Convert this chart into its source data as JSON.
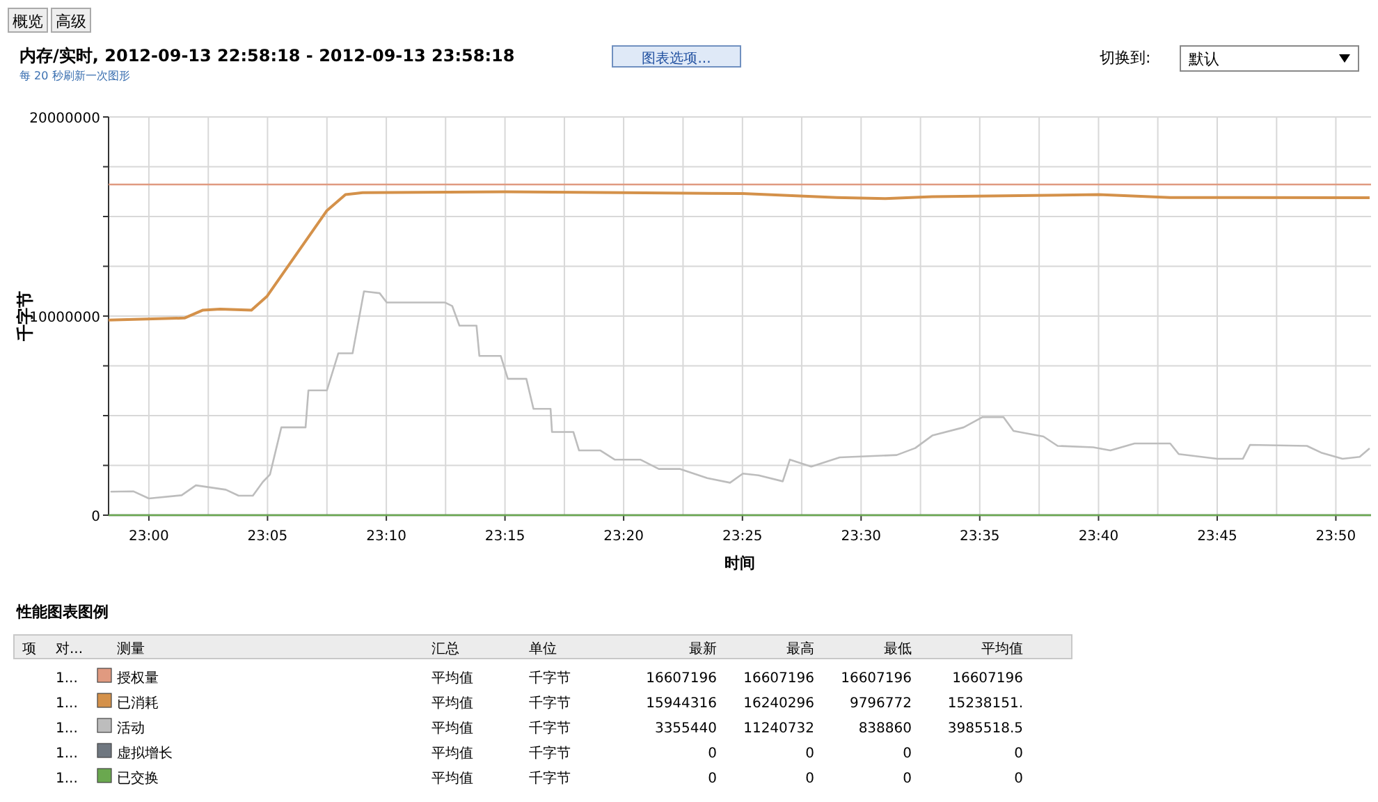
{
  "chart_data": {
    "type": "line",
    "title": "内存/实时, 2012-09-13 22:58:18 - 2012-09-13 23:58:18",
    "subtitle": "每 20 秒刷新一次图形",
    "xlabel": "时间",
    "ylabel": "千字节",
    "xlim": [
      22.9717,
      23.858
    ],
    "ylim": [
      0,
      20000000
    ],
    "xticks": [
      {
        "value": 23,
        "label": "23:00"
      },
      {
        "value": 23.0417,
        "label": null
      },
      {
        "value": 23.0833,
        "label": "23:05"
      },
      {
        "value": 23.125,
        "label": null
      },
      {
        "value": 23.1667,
        "label": "23:10"
      },
      {
        "value": 23.2083,
        "label": null
      },
      {
        "value": 23.25,
        "label": "23:15"
      },
      {
        "value": 23.2917,
        "label": null
      },
      {
        "value": 23.3333,
        "label": "23:20"
      },
      {
        "value": 23.375,
        "label": null
      },
      {
        "value": 23.4167,
        "label": "23:25"
      },
      {
        "value": 23.4583,
        "label": null
      },
      {
        "value": 23.5,
        "label": "23:30"
      },
      {
        "value": 23.5417,
        "label": null
      },
      {
        "value": 23.5833,
        "label": "23:35"
      },
      {
        "value": 23.625,
        "label": null
      },
      {
        "value": 23.6667,
        "label": "23:40"
      },
      {
        "value": 23.7083,
        "label": null
      },
      {
        "value": 23.75,
        "label": "23:45"
      },
      {
        "value": 23.7917,
        "label": null
      },
      {
        "value": 23.8333,
        "label": "23:50"
      }
    ],
    "yticks": [
      0,
      {
        "value": 2500000,
        "label": null
      },
      {
        "value": 5000000,
        "label": null
      },
      {
        "value": 7500000,
        "label": null
      },
      10000000,
      {
        "value": 12500000,
        "label": null
      },
      {
        "value": 15000000,
        "label": null
      },
      {
        "value": 17500000,
        "label": null
      },
      20000000
    ],
    "grid": true,
    "legend": "bottom",
    "series": [
      {
        "name": "授权量",
        "color": "#e09a80",
        "x": [
          22.9717,
          23.858
        ],
        "values": [
          16607196,
          16607196
        ]
      },
      {
        "name": "已消耗",
        "color": "#d4914a",
        "x": [
          22.9717,
          23.025,
          23.038,
          23.05,
          23.072,
          23.083,
          23.125,
          23.138,
          23.15,
          23.25,
          23.333,
          23.417,
          23.483,
          23.517,
          23.55,
          23.667,
          23.717,
          23.767,
          23.857
        ],
        "values": [
          9800000,
          9900000,
          10300000,
          10350000,
          10300000,
          11000000,
          15300000,
          16100000,
          16200000,
          16240000,
          16200000,
          16150000,
          15950000,
          15900000,
          16000000,
          16100000,
          15950000,
          15950000,
          15944316
        ]
      },
      {
        "name": "活动",
        "color": "#bdbdbd",
        "x": [
          22.973,
          22.989,
          23.0,
          23.023,
          23.033,
          23.054,
          23.063,
          23.073,
          23.08,
          23.085,
          23.093,
          23.11,
          23.112,
          23.125,
          23.133,
          23.143,
          23.151,
          23.162,
          23.167,
          23.208,
          23.213,
          23.218,
          23.23,
          23.232,
          23.247,
          23.252,
          23.265,
          23.27,
          23.282,
          23.283,
          23.298,
          23.302,
          23.317,
          23.327,
          23.345,
          23.358,
          23.373,
          23.392,
          23.408,
          23.417,
          23.428,
          23.445,
          23.45,
          23.465,
          23.485,
          23.525,
          23.538,
          23.55,
          23.572,
          23.585,
          23.6,
          23.607,
          23.628,
          23.638,
          23.663,
          23.675,
          23.692,
          23.717,
          23.723,
          23.75,
          23.768,
          23.773,
          23.813,
          23.823,
          23.838,
          23.85,
          23.857
        ],
        "values": [
          1180000,
          1200000,
          838860,
          1000000,
          1500000,
          1280000,
          980000,
          980000,
          1670000,
          2040000,
          4410000,
          4410000,
          6270000,
          6270000,
          8130000,
          8130000,
          11240732,
          11150000,
          10680000,
          10680000,
          10500000,
          9520000,
          9520000,
          8000000,
          8000000,
          6850000,
          6850000,
          5340000,
          5340000,
          4180000,
          4180000,
          3250000,
          3250000,
          2790000,
          2790000,
          2320000,
          2320000,
          1860000,
          1630000,
          2090000,
          2000000,
          1700000,
          2790000,
          2440000,
          2900000,
          3020000,
          3370000,
          4000000,
          4410000,
          4920000,
          4920000,
          4230000,
          3950000,
          3480000,
          3410000,
          3250000,
          3600000,
          3600000,
          3070000,
          2830000,
          2830000,
          3530000,
          3480000,
          3140000,
          2830000,
          2930000,
          3355440
        ]
      },
      {
        "name": "虚拟增长",
        "color": "#6f7780",
        "x": [
          22.9717,
          23.858
        ],
        "values": [
          0,
          0
        ]
      },
      {
        "name": "已交换",
        "color": "#6aa84f",
        "x": [
          22.9717,
          23.858
        ],
        "values": [
          0,
          0
        ]
      }
    ],
    "annotations": [
      "概览",
      "高级",
      "图表选项...",
      "切换到:",
      "默认",
      "性能图表图例",
      "项",
      "对...",
      "测量",
      "汇总",
      "单位",
      "最新",
      "最高",
      "最低",
      "平均值",
      "1...",
      "平均值",
      "千字节",
      "16607196",
      "16607196",
      "16607196",
      "16607196",
      "1...",
      "平均值",
      "千字节",
      "15944316",
      "16240296",
      "9796772",
      "15238151.",
      "1...",
      "平均值",
      "千字节",
      "3355440",
      "11240732",
      "838860",
      "3985518.5",
      "1...",
      "平均值",
      "千字节",
      "0",
      "0",
      "0",
      "0",
      "1...",
      "平均值",
      "千字节",
      "0",
      "0",
      "0",
      "0"
    ]
  }
}
